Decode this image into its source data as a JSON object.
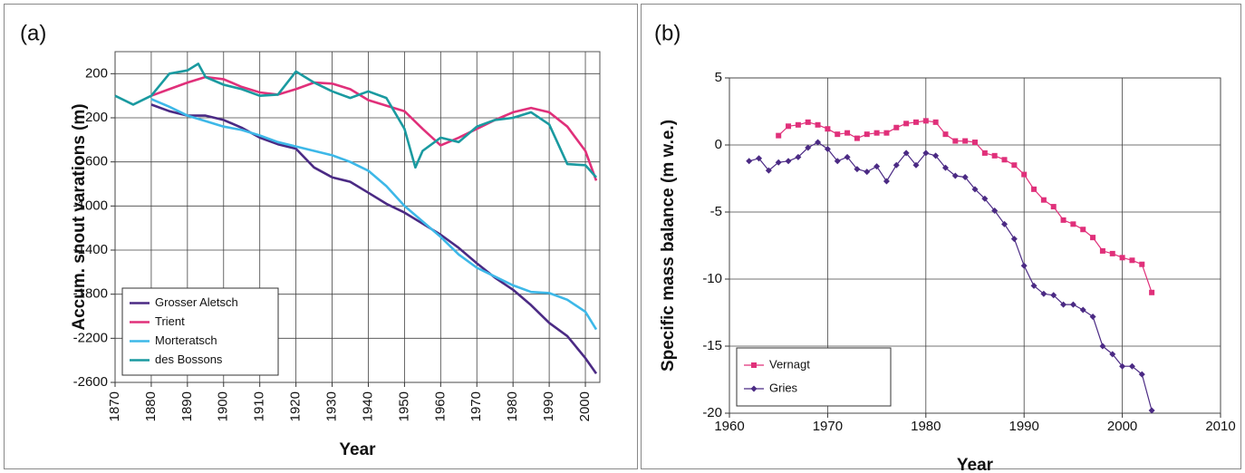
{
  "chart_data": [
    {
      "type": "line",
      "panel_label": "(a)",
      "ylabel": "Accum.  snout varations (m)",
      "xlabel": "Year",
      "xlim": [
        1870,
        2004
      ],
      "ylim": [
        -2600,
        400
      ],
      "xticks": [
        1870,
        1880,
        1890,
        1900,
        1910,
        1920,
        1930,
        1940,
        1950,
        1960,
        1970,
        1980,
        1990,
        2000
      ],
      "yticks": [
        -2600,
        -2200,
        -1800,
        -1400,
        -1000,
        -600,
        -200,
        200
      ],
      "grid": true,
      "x_tick_rotation": -90,
      "legend": "lower left",
      "series": [
        {
          "name": "Grosser Aletsch",
          "color": "#4b2a84",
          "x": [
            1880,
            1885,
            1890,
            1895,
            1900,
            1905,
            1910,
            1915,
            1920,
            1925,
            1930,
            1935,
            1940,
            1945,
            1950,
            1955,
            1960,
            1965,
            1970,
            1975,
            1980,
            1985,
            1990,
            1995,
            2000,
            2003
          ],
          "values": [
            -80,
            -140,
            -180,
            -180,
            -220,
            -290,
            -380,
            -440,
            -480,
            -650,
            -740,
            -780,
            -880,
            -980,
            -1060,
            -1160,
            -1260,
            -1380,
            -1520,
            -1650,
            -1760,
            -1900,
            -2060,
            -2180,
            -2380,
            -2520
          ]
        },
        {
          "name": "Trient",
          "color": "#e0307a",
          "x": [
            1880,
            1885,
            1890,
            1895,
            1900,
            1905,
            1910,
            1915,
            1920,
            1925,
            1930,
            1935,
            1940,
            1945,
            1950,
            1955,
            1960,
            1965,
            1970,
            1975,
            1980,
            1985,
            1990,
            1995,
            2000,
            2003
          ],
          "values": [
            0,
            60,
            120,
            170,
            150,
            80,
            30,
            10,
            60,
            120,
            110,
            60,
            -40,
            -90,
            -140,
            -300,
            -450,
            -380,
            -300,
            -220,
            -150,
            -110,
            -150,
            -280,
            -500,
            -770
          ]
        },
        {
          "name": "Morteratsch",
          "color": "#3db8e8",
          "x": [
            1880,
            1885,
            1890,
            1895,
            1900,
            1905,
            1910,
            1915,
            1920,
            1925,
            1930,
            1935,
            1940,
            1945,
            1950,
            1955,
            1960,
            1965,
            1970,
            1975,
            1980,
            1985,
            1990,
            1995,
            2000,
            2003
          ],
          "values": [
            -30,
            -100,
            -180,
            -230,
            -280,
            -310,
            -360,
            -420,
            -460,
            -500,
            -540,
            -600,
            -680,
            -820,
            -1000,
            -1140,
            -1280,
            -1440,
            -1560,
            -1640,
            -1720,
            -1780,
            -1790,
            -1850,
            -1960,
            -2120
          ]
        },
        {
          "name": "des Bossons",
          "color": "#1a9aa0",
          "x": [
            1870,
            1875,
            1880,
            1885,
            1890,
            1893,
            1895,
            1900,
            1905,
            1910,
            1915,
            1920,
            1925,
            1930,
            1935,
            1940,
            1945,
            1950,
            1953,
            1955,
            1960,
            1965,
            1970,
            1975,
            1980,
            1985,
            1990,
            1995,
            2000,
            2003
          ],
          "values": [
            0,
            -80,
            0,
            200,
            230,
            290,
            170,
            100,
            60,
            0,
            10,
            220,
            120,
            40,
            -20,
            40,
            -20,
            -300,
            -650,
            -500,
            -380,
            -420,
            -280,
            -220,
            -200,
            -150,
            -260,
            -620,
            -630,
            -740
          ]
        }
      ]
    },
    {
      "type": "line",
      "panel_label": "(b)",
      "ylabel": "Specific mass balance (m w.e.)",
      "xlabel": "Year",
      "xlim": [
        1960,
        2010
      ],
      "ylim": [
        -20,
        5
      ],
      "xticks": [
        1960,
        1970,
        1980,
        1990,
        2000,
        2010
      ],
      "yticks": [
        -20,
        -15,
        -10,
        -5,
        0,
        5
      ],
      "grid": true,
      "legend": "lower left",
      "series": [
        {
          "name": "Vernagt",
          "color": "#e0307a",
          "marker": "square",
          "x": [
            1965,
            1966,
            1967,
            1968,
            1969,
            1970,
            1971,
            1972,
            1973,
            1974,
            1975,
            1976,
            1977,
            1978,
            1979,
            1980,
            1981,
            1982,
            1983,
            1984,
            1985,
            1986,
            1987,
            1988,
            1989,
            1990,
            1991,
            1992,
            1993,
            1994,
            1995,
            1996,
            1997,
            1998,
            1999,
            2000,
            2001,
            2002,
            2003
          ],
          "values": [
            0.7,
            1.4,
            1.5,
            1.7,
            1.5,
            1.2,
            0.8,
            0.9,
            0.5,
            0.8,
            0.9,
            0.9,
            1.3,
            1.6,
            1.7,
            1.8,
            1.7,
            0.8,
            0.3,
            0.3,
            0.2,
            -0.6,
            -0.8,
            -1.1,
            -1.5,
            -2.2,
            -3.3,
            -4.1,
            -4.6,
            -5.6,
            -5.9,
            -6.3,
            -6.9,
            -7.9,
            -8.1,
            -8.4,
            -8.6,
            -8.9,
            -11.0
          ]
        },
        {
          "name": "Gries",
          "color": "#4b2a84",
          "marker": "diamond",
          "x": [
            1962,
            1963,
            1964,
            1965,
            1966,
            1967,
            1968,
            1969,
            1970,
            1971,
            1972,
            1973,
            1974,
            1975,
            1976,
            1977,
            1978,
            1979,
            1980,
            1981,
            1982,
            1983,
            1984,
            1985,
            1986,
            1987,
            1988,
            1989,
            1990,
            1991,
            1992,
            1993,
            1994,
            1995,
            1996,
            1997,
            1998,
            1999,
            2000,
            2001,
            2002,
            2003
          ],
          "values": [
            -1.2,
            -1.0,
            -1.9,
            -1.3,
            -1.2,
            -0.9,
            -0.2,
            0.2,
            -0.3,
            -1.2,
            -0.9,
            -1.8,
            -2.0,
            -1.6,
            -2.7,
            -1.5,
            -0.6,
            -1.5,
            -0.6,
            -0.8,
            -1.7,
            -2.3,
            -2.4,
            -3.3,
            -4.0,
            -4.9,
            -5.9,
            -7.0,
            -9.0,
            -10.5,
            -11.1,
            -11.2,
            -11.9,
            -11.9,
            -12.3,
            -12.8,
            -15.0,
            -15.6,
            -16.5,
            -16.5,
            -17.1,
            -19.8
          ]
        }
      ]
    }
  ]
}
